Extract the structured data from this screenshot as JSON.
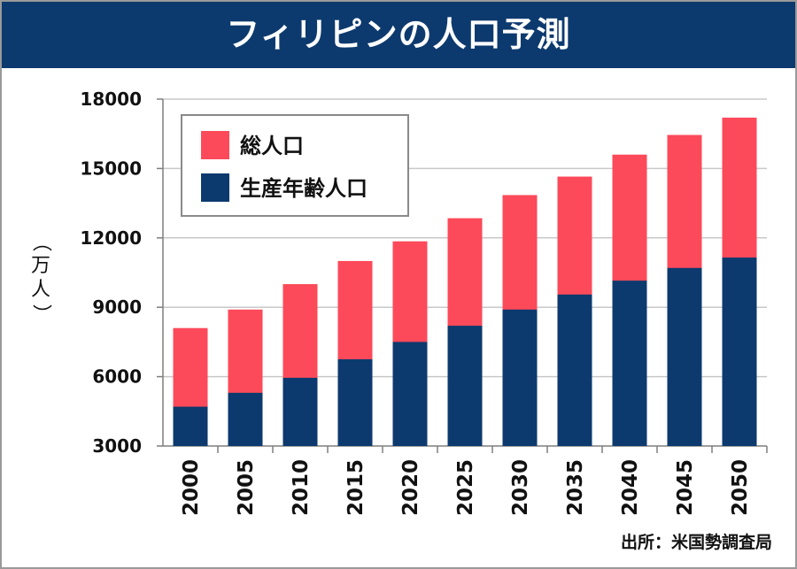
{
  "title": "フィリピンの人口予測",
  "source": "出所：米国勢調査局",
  "colors": {
    "total": "#fc4a5a",
    "working": "#0d3a6e",
    "header": "#0d3a6e",
    "grid": "#c8c8c8"
  },
  "chart_data": {
    "type": "bar",
    "stacked_overlay": true,
    "ylabel": "（万人）",
    "ylim": [
      3000,
      18000
    ],
    "yticks": [
      3000,
      6000,
      9000,
      12000,
      15000,
      18000
    ],
    "grid": true,
    "legend_position": "top-left",
    "categories": [
      "2000",
      "2005",
      "2010",
      "2015",
      "2020",
      "2025",
      "2030",
      "2035",
      "2040",
      "2045",
      "2050"
    ],
    "series": [
      {
        "name": "総人口",
        "color": "#fc4a5a",
        "values": [
          8100,
          8900,
          10000,
          11000,
          11850,
          12850,
          13850,
          14650,
          15600,
          16450,
          17200
        ]
      },
      {
        "name": "生産年齢人口",
        "color": "#0d3a6e",
        "values": [
          4700,
          5300,
          5950,
          6750,
          7500,
          8200,
          8900,
          9550,
          10150,
          10700,
          11150
        ]
      }
    ]
  }
}
